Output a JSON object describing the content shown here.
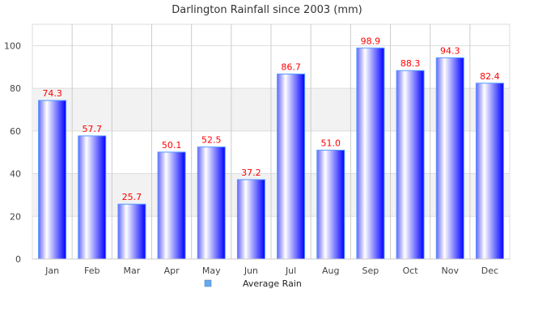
{
  "chart_data": {
    "type": "bar",
    "title": "Darlington Rainfall since 2003 (mm)",
    "categories": [
      "Jan",
      "Feb",
      "Mar",
      "Apr",
      "May",
      "Jun",
      "Jul",
      "Aug",
      "Sep",
      "Oct",
      "Nov",
      "Dec"
    ],
    "series": [
      {
        "name": "Average Rain",
        "values": [
          74.3,
          57.7,
          25.7,
          50.1,
          52.5,
          37.2,
          86.7,
          51.0,
          98.9,
          88.3,
          94.3,
          82.4
        ]
      }
    ],
    "value_labels": [
      "74.3",
      "57.7",
      "25.7",
      "50.1",
      "52.5",
      "37.2",
      "86.7",
      "51.0",
      "98.9",
      "88.3",
      "94.3",
      "82.4"
    ],
    "yticks": [
      "0",
      "20",
      "40",
      "60",
      "80",
      "100"
    ],
    "ylim": [
      0,
      110
    ],
    "grid": true,
    "legend": "bottom",
    "colors": {
      "bar": "#0000ff",
      "bar_edge": "#5599ff",
      "label": "#ff0000",
      "band": "#f2f2f2",
      "legend": "#66aaee"
    }
  }
}
